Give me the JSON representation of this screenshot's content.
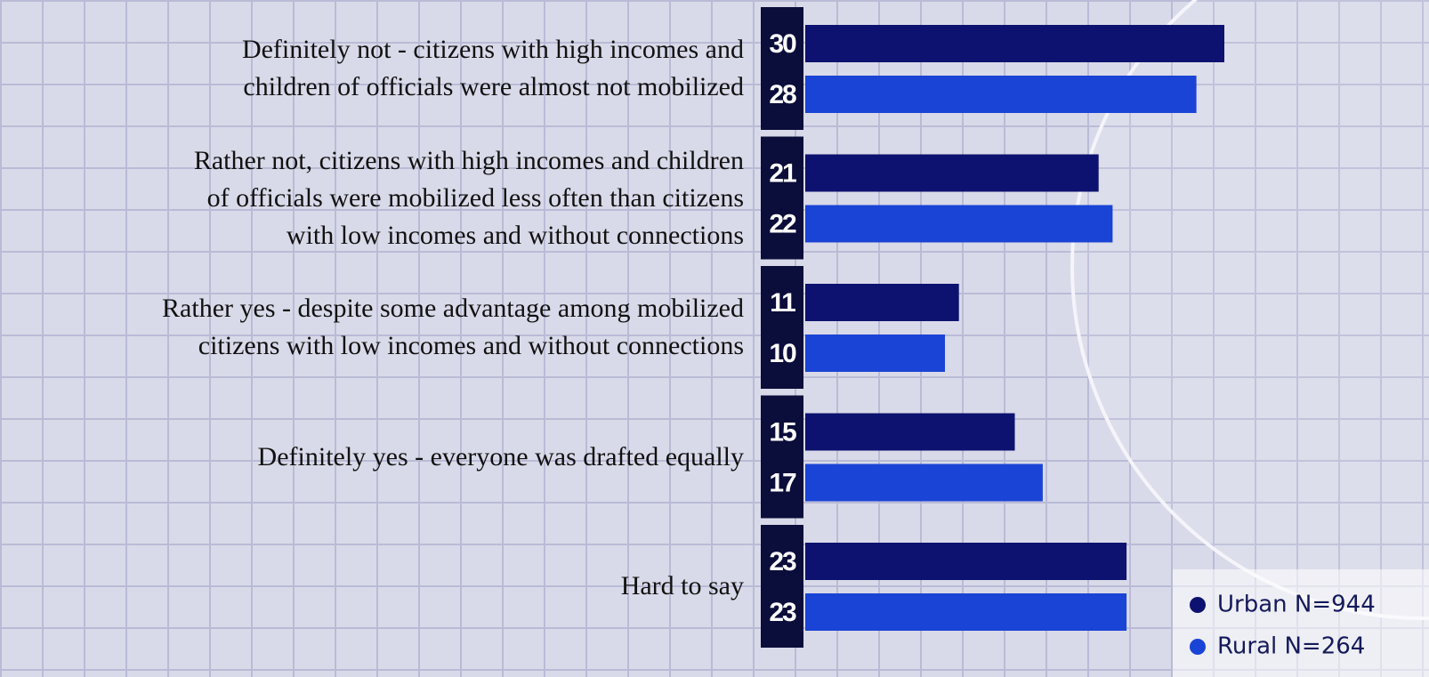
{
  "chart_data": {
    "type": "bar",
    "orientation": "horizontal",
    "categories": [
      "Definitely not - citizens with high incomes and\nchildren of officials were almost not mobilized",
      "Rather not, citizens with high incomes and children\nof officials were mobilized less often than citizens\nwith low incomes and without connections",
      "Rather yes - despite some advantage among mobilized\ncitizens with low incomes and without connections",
      "Definitely yes - everyone was drafted equally",
      "Hard to say"
    ],
    "series": [
      {
        "name": "Urban N=944",
        "color": "#0d1270",
        "values": [
          30,
          21,
          11,
          15,
          23
        ]
      },
      {
        "name": "Rural N=264",
        "color": "#1a44d6",
        "values": [
          28,
          22,
          10,
          17,
          23
        ]
      }
    ],
    "legend": "bottom-right"
  }
}
